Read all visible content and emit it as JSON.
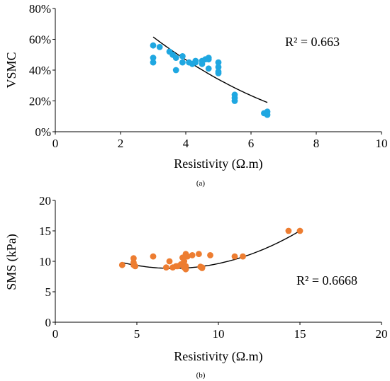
{
  "chart_data": [
    {
      "type": "scatter",
      "xlabel": "Resistivity (Ω.m)",
      "ylabel": "VSMC",
      "xlim": [
        0,
        10
      ],
      "ylim": [
        0,
        0.8
      ],
      "x_ticks": [
        "0",
        "2",
        "4",
        "6",
        "8",
        "10"
      ],
      "y_ticks": [
        "0%",
        "20%",
        "40%",
        "60%",
        "80%"
      ],
      "annotation": "R² = 0.663",
      "caption": "(a)",
      "marker_color": "#1FA7E1",
      "trendline": {
        "type": "polynomial-2",
        "x_range": [
          3.0,
          6.5
        ],
        "y_at_start": 0.615,
        "y_at_mid": 0.37,
        "y_at_end": 0.19
      },
      "series": [
        {
          "x": [
            3.0,
            3.0,
            3.0,
            3.2,
            3.5,
            3.6,
            3.7,
            3.7,
            3.9,
            3.9,
            4.1,
            4.2,
            4.3,
            4.3,
            4.5,
            4.5,
            4.6,
            4.7,
            4.7,
            4.7,
            5.0,
            5.0,
            5.0,
            5.0,
            5.5,
            5.5,
            5.5,
            6.4,
            6.5,
            6.5
          ],
          "y": [
            0.56,
            0.48,
            0.45,
            0.55,
            0.52,
            0.5,
            0.48,
            0.4,
            0.49,
            0.45,
            0.45,
            0.44,
            0.46,
            0.45,
            0.44,
            0.46,
            0.47,
            0.47,
            0.48,
            0.41,
            0.45,
            0.42,
            0.39,
            0.38,
            0.24,
            0.22,
            0.2,
            0.12,
            0.13,
            0.11
          ]
        }
      ]
    },
    {
      "type": "scatter",
      "xlabel": "Resistivity (Ω.m)",
      "ylabel": "SMS (kPa)",
      "xlim": [
        0,
        20
      ],
      "ylim": [
        0,
        20
      ],
      "x_ticks": [
        "0",
        "5",
        "10",
        "15",
        "20"
      ],
      "y_ticks": [
        "0",
        "5",
        "10",
        "15",
        "20"
      ],
      "annotation": "R² = 0.6668",
      "caption": "(b)",
      "marker_color": "#ED7D31",
      "trendline": {
        "type": "polynomial-2",
        "x_range": [
          4.1,
          15.0
        ],
        "y_at_start": 9.8,
        "y_at_mid": 9.4,
        "y_at_end": 15.0
      },
      "series": [
        {
          "x": [
            4.1,
            4.8,
            4.8,
            4.9,
            4.8,
            6.0,
            6.8,
            7.0,
            7.2,
            7.4,
            7.5,
            7.7,
            7.8,
            7.9,
            7.9,
            8.0,
            8.0,
            8.0,
            8.1,
            8.4,
            8.8,
            8.9,
            9.0,
            9.0,
            9.5,
            11.0,
            11.5,
            14.3,
            15.0
          ],
          "y": [
            9.4,
            10.5,
            9.4,
            9.2,
            9.8,
            10.8,
            9.0,
            10.0,
            9.0,
            9.2,
            9.2,
            9.5,
            10.6,
            10.0,
            9.0,
            11.2,
            8.7,
            9.2,
            10.8,
            11.0,
            11.2,
            9.1,
            8.9,
            9.0,
            11.0,
            10.8,
            10.8,
            15.0,
            15.0
          ]
        }
      ]
    }
  ]
}
